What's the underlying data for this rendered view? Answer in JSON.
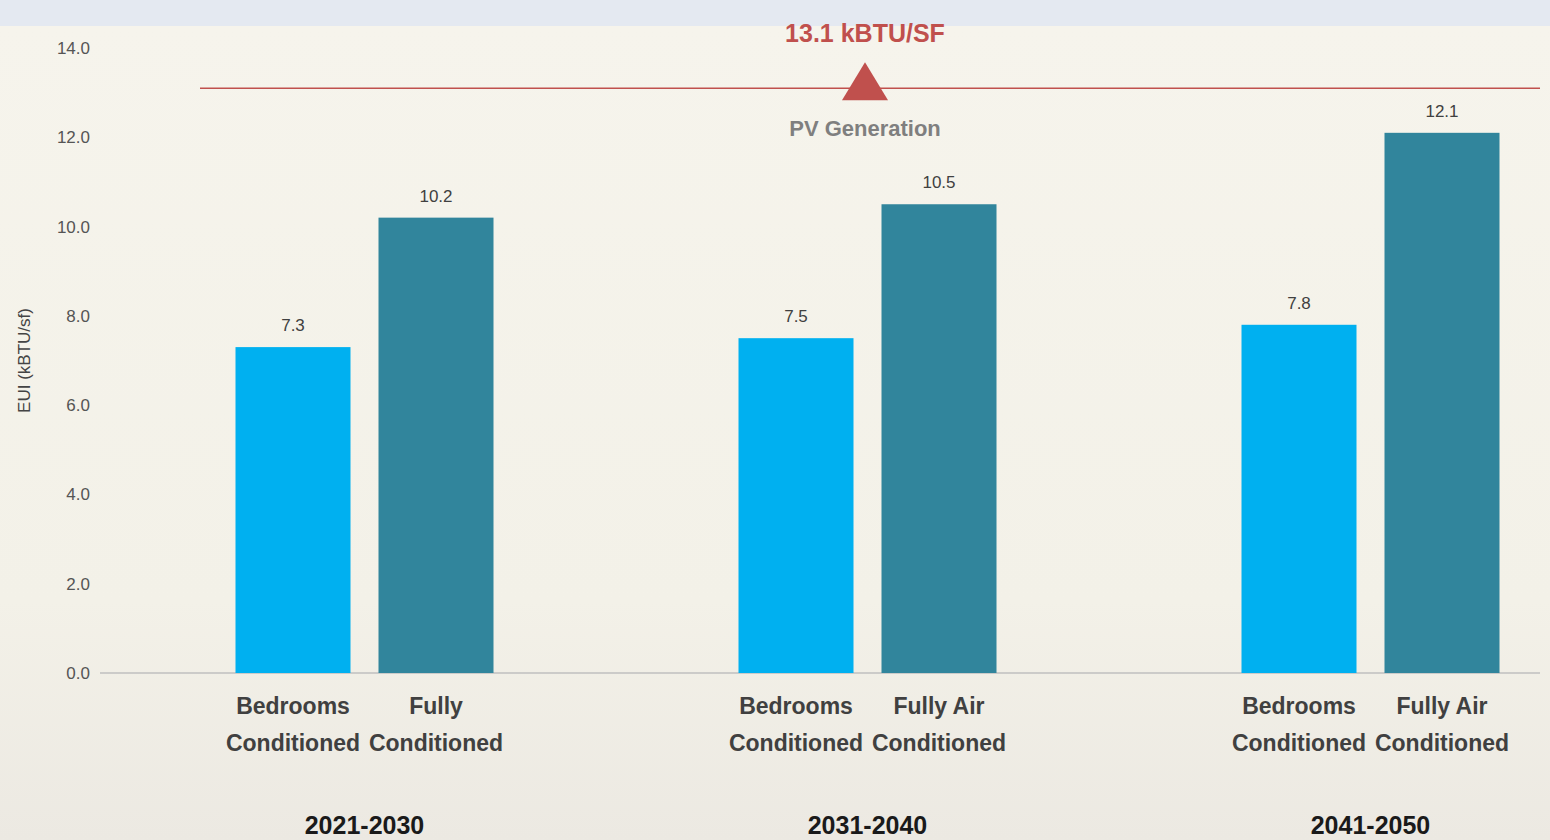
{
  "chart_data": {
    "type": "bar",
    "y_label": "EUI (kBTU/sf)",
    "categories": [
      "Bedrooms Conditioned",
      "Fully Conditioned",
      "Bedrooms Conditioned",
      "Fully Air Conditioned",
      "Bedrooms Conditioned",
      "Fully Air Conditioned"
    ],
    "groups": [
      "2021-2030",
      "2031-2040",
      "2041-2050"
    ],
    "values": [
      7.3,
      10.2,
      7.5,
      10.5,
      7.8,
      12.1
    ],
    "colors": [
      "#00b0f0",
      "#31859c",
      "#00b0f0",
      "#31859c",
      "#00b0f0",
      "#31859c"
    ],
    "ylim": [
      0,
      14
    ],
    "yticks": [
      {
        "value": 0,
        "label": "0.0"
      },
      {
        "value": 2,
        "label": "2.0"
      },
      {
        "value": 4,
        "label": "4.0"
      },
      {
        "value": 6,
        "label": "6.0"
      },
      {
        "value": 8,
        "label": "8.0"
      },
      {
        "value": 10,
        "label": "10.0"
      },
      {
        "value": 12,
        "label": "12.0"
      },
      {
        "value": 14,
        "label": "14.0"
      }
    ],
    "reference_line": {
      "value": 13.1,
      "label": "13.1 kBTU/SF",
      "caption": "PV Generation"
    },
    "grid": false,
    "data_labels": true
  }
}
